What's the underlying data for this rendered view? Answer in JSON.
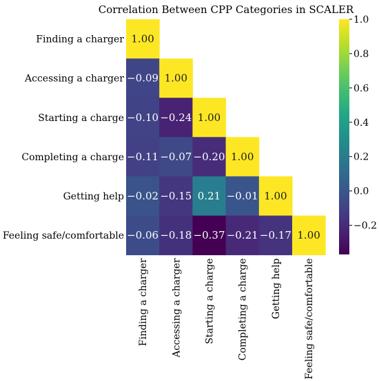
{
  "chart_data": {
    "type": "heatmap",
    "title": "Correlation Between CPP Categories in SCALER",
    "categories": [
      "Finding a charger",
      "Accessing a charger",
      "Starting a charge",
      "Completing a charge",
      "Getting help",
      "Feeling safe/comfortable"
    ],
    "matrix": [
      [
        "1.00"
      ],
      [
        "-0.09",
        "1.00"
      ],
      [
        "-0.10",
        "-0.24",
        "1.00"
      ],
      [
        "-0.11",
        "-0.07",
        "-0.20",
        "1.00"
      ],
      [
        "-0.02",
        "-0.15",
        "0.21",
        "-0.01",
        "1.00"
      ],
      [
        "-0.06",
        "-0.18",
        "-0.37",
        "-0.21",
        "-0.17",
        "1.00"
      ]
    ],
    "mask": "upper triangle hidden",
    "colormap": "viridis",
    "vmin": -0.37,
    "vmax": 1.0,
    "colorbar_ticks": [
      "1.0",
      "0.8",
      "0.6",
      "0.4",
      "0.2",
      "0.0",
      "−0.2"
    ]
  }
}
